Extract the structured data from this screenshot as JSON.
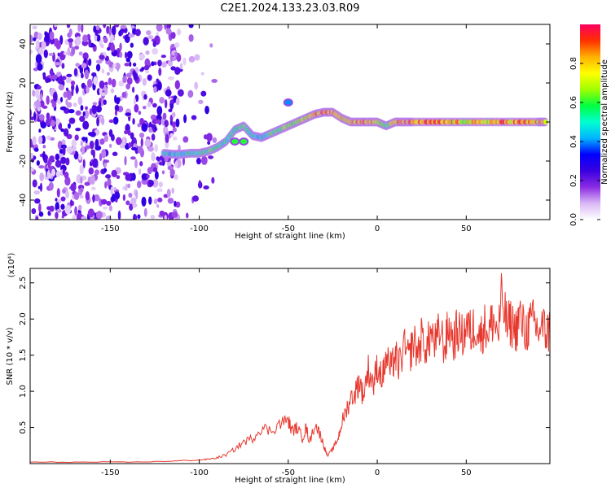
{
  "title": "C2E1.2024.133.23.03.R09",
  "chart_data": [
    {
      "type": "heatmap",
      "xlabel": "Height of straight line (km)",
      "ylabel": "Frequency (Hz)",
      "xlim": [
        -195,
        97
      ],
      "ylim": [
        -50,
        50
      ],
      "xticks": [
        -150,
        -100,
        -50,
        0,
        50
      ],
      "yticks": [
        -40,
        -20,
        0,
        20,
        40
      ],
      "colorbar": {
        "label": "Normalized spectral amplitude",
        "ticks": [
          0.0,
          0.2,
          0.4,
          0.6,
          0.8
        ],
        "range": [
          0,
          1
        ],
        "stops": [
          "#ffffff",
          "#d9b8f5",
          "#8a2be2",
          "#3a00e0",
          "#0000ff",
          "#00b4ff",
          "#00ffd0",
          "#00ff40",
          "#a0ff00",
          "#ffff00",
          "#ffb000",
          "#ff3000",
          "#ff0060"
        ]
      },
      "noise_region_x": [
        -195,
        -90
      ],
      "ridge": {
        "x": [
          -120,
          -115,
          -110,
          -105,
          -100,
          -95,
          -90,
          -85,
          -80,
          -75,
          -70,
          -65,
          -60,
          -55,
          -50,
          -45,
          -40,
          -35,
          -30,
          -25,
          -20,
          -15,
          -10,
          -5,
          0,
          5,
          10,
          15,
          20,
          30,
          40,
          50,
          60,
          70,
          80,
          90,
          95
        ],
        "y": [
          -16,
          -16.5,
          -16.5,
          -16,
          -16,
          -15,
          -13,
          -10,
          -4,
          -2,
          -7,
          -8,
          -6,
          -4,
          -2,
          0,
          2,
          4,
          5,
          5,
          2,
          0,
          0,
          0,
          0,
          -2,
          0,
          0,
          0,
          0,
          0,
          0,
          0,
          0,
          0,
          0,
          0
        ],
        "amp": [
          0.5,
          0.5,
          0.5,
          0.55,
          0.55,
          0.6,
          0.6,
          0.55,
          0.6,
          0.6,
          0.55,
          0.5,
          0.6,
          0.65,
          0.7,
          0.75,
          0.75,
          0.85,
          0.9,
          0.9,
          0.8,
          0.85,
          0.9,
          0.9,
          0.85,
          0.6,
          0.85,
          0.9,
          0.9,
          0.9,
          0.85,
          0.8,
          0.8,
          0.9,
          0.9,
          0.85,
          0.85
        ]
      },
      "side_blobs": [
        {
          "x": -50,
          "y": 10,
          "amp": 0.4
        },
        {
          "x": -80,
          "y": -10,
          "amp": 0.6
        },
        {
          "x": -75,
          "y": -10,
          "amp": 0.6
        }
      ]
    },
    {
      "type": "line",
      "xlabel": "Height of straight line (km)",
      "ylabel": "SNR (10 * v/v)",
      "yunit": "(x10⁴)",
      "xlim": [
        -195,
        97
      ],
      "ylim": [
        0,
        2.7
      ],
      "xticks": [
        -150,
        -100,
        -50,
        0,
        50
      ],
      "yticks": [
        0.5,
        1.0,
        1.5,
        2.0,
        2.5
      ],
      "ytick_labels": [
        "0.5",
        "1.0",
        "1.5",
        "2.0",
        "2.5"
      ],
      "color": "#e8382e",
      "series": [
        {
          "x": [
            -195,
            -180,
            -160,
            -140,
            -120,
            -110,
            -100,
            -95,
            -90,
            -85,
            -80,
            -75,
            -70,
            -65,
            -60,
            -55,
            -50,
            -48,
            -45,
            -42,
            -40,
            -38,
            -35,
            -32,
            -30,
            -28,
            -25,
            -22,
            -20,
            -18,
            -15,
            -12,
            -10,
            -8,
            -5,
            -2,
            0,
            3,
            5,
            8,
            10,
            12,
            15,
            18,
            20,
            23,
            25,
            28,
            30,
            33,
            35,
            38,
            40,
            43,
            45,
            48,
            50,
            53,
            55,
            58,
            60,
            63,
            65,
            68,
            70,
            73,
            75,
            78,
            80,
            83,
            85,
            88,
            90,
            93,
            95,
            97
          ],
          "y": [
            0.02,
            0.02,
            0.02,
            0.02,
            0.03,
            0.04,
            0.05,
            0.06,
            0.08,
            0.12,
            0.2,
            0.3,
            0.35,
            0.5,
            0.45,
            0.55,
            0.6,
            0.45,
            0.5,
            0.35,
            0.5,
            0.3,
            0.55,
            0.4,
            0.25,
            0.1,
            0.2,
            0.35,
            0.55,
            0.7,
            0.9,
            1.0,
            1.15,
            0.95,
            1.3,
            1.1,
            1.35,
            1.2,
            1.45,
            1.3,
            1.5,
            1.35,
            1.6,
            1.45,
            1.7,
            1.55,
            1.75,
            1.6,
            1.8,
            1.65,
            1.85,
            1.6,
            1.9,
            1.7,
            1.85,
            1.75,
            1.9,
            1.8,
            1.95,
            1.75,
            1.9,
            1.85,
            2.0,
            1.8,
            2.3,
            1.9,
            1.95,
            1.85,
            2.05,
            1.8,
            1.9,
            1.95,
            1.85,
            1.9,
            1.8,
            1.85
          ]
        }
      ]
    }
  ]
}
